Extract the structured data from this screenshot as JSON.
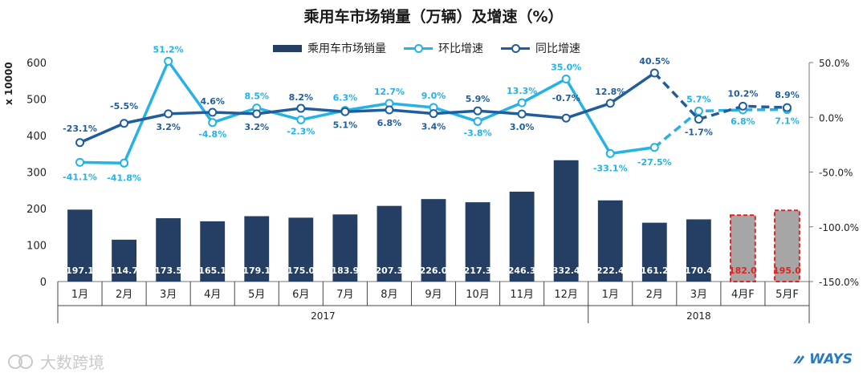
{
  "header": {
    "title": "乘用车市场销量（万辆）及增速（%）",
    "y_left_label": "x 10000"
  },
  "branding": {
    "watermark_text": "大数跨境",
    "logo_text": "WAYS"
  },
  "colors": {
    "bar": "#243f63",
    "forecast_bar": "#a6a6a6",
    "forecast_border": "#e32222",
    "mom_line": "#25b2e6",
    "yoy_line": "#1f5d9c",
    "bar_label": "#ffffff",
    "forecast_label": "#e32222"
  },
  "chart_data": {
    "type": "bar",
    "title": "乘用车市场销量（万辆）及增速（%）",
    "categories": [
      "1月",
      "2月",
      "3月",
      "4月",
      "5月",
      "6月",
      "7月",
      "8月",
      "9月",
      "10月",
      "11月",
      "12月",
      "1月",
      "2月",
      "3月",
      "4月F",
      "5月F"
    ],
    "groups": [
      {
        "label": "2017",
        "start": 0,
        "end": 11
      },
      {
        "label": "2018",
        "start": 12,
        "end": 16
      }
    ],
    "series": [
      {
        "name": "乘用车市场销量",
        "kind": "bar",
        "axis": "left",
        "values": [
          197.1,
          114.7,
          173.5,
          165.1,
          179.1,
          175.0,
          183.9,
          207.3,
          226.0,
          217.3,
          246.3,
          332.4,
          222.4,
          161.2,
          170.4,
          182.0,
          195.0
        ],
        "labels": [
          "197.1",
          "114.7",
          "173.5",
          "165.1",
          "179.1",
          "175.0",
          "183.9",
          "207.3",
          "226.0",
          "217.3",
          "246.3",
          "332.4",
          "222.4",
          "161.2",
          "170.4",
          "182.0",
          "195.0"
        ],
        "forecast_from": 15
      },
      {
        "name": "环比增速",
        "kind": "line",
        "axis": "right",
        "values": [
          -41.1,
          -41.8,
          51.2,
          -4.8,
          8.5,
          -2.3,
          6.3,
          12.7,
          9.0,
          -3.8,
          13.3,
          35.0,
          -33.1,
          -27.5,
          5.7,
          6.8,
          7.1
        ],
        "labels": [
          "-41.1%",
          "-41.8%",
          "51.2%",
          "-4.8%",
          "8.5%",
          "-2.3%",
          "6.3%",
          "12.7%",
          "9.0%",
          "-3.8%",
          "13.3%",
          "35.0%",
          "-33.1%",
          "-27.5%",
          "5.7%",
          "6.8%",
          "7.1%"
        ],
        "dashed_from": 13
      },
      {
        "name": "同比增速",
        "kind": "line",
        "axis": "right",
        "values": [
          -23.1,
          -5.5,
          3.2,
          4.6,
          3.2,
          8.2,
          5.1,
          6.8,
          3.4,
          5.9,
          3.0,
          -0.7,
          12.8,
          40.5,
          -1.7,
          10.2,
          8.9
        ],
        "labels": [
          "-23.1%",
          "-5.5%",
          "3.2%",
          "4.6%",
          "3.2%",
          "8.2%",
          "5.1%",
          "6.8%",
          "3.4%",
          "5.9%",
          "3.0%",
          "-0.7%",
          "12.8%",
          "40.5%",
          "-1.7%",
          "10.2%",
          "8.9%"
        ],
        "dashed_from": 13
      }
    ],
    "y_left": {
      "min": 0,
      "max": 600,
      "ticks": [
        "0",
        "100",
        "200",
        "300",
        "400",
        "500",
        "600"
      ],
      "label": "x 10000"
    },
    "y_right": {
      "min": -150,
      "max": 50,
      "ticks": [
        "-150.0%",
        "-100.0%",
        "-50.0%",
        "0.0%",
        "50.0%"
      ]
    },
    "legend_position": "top-center"
  }
}
